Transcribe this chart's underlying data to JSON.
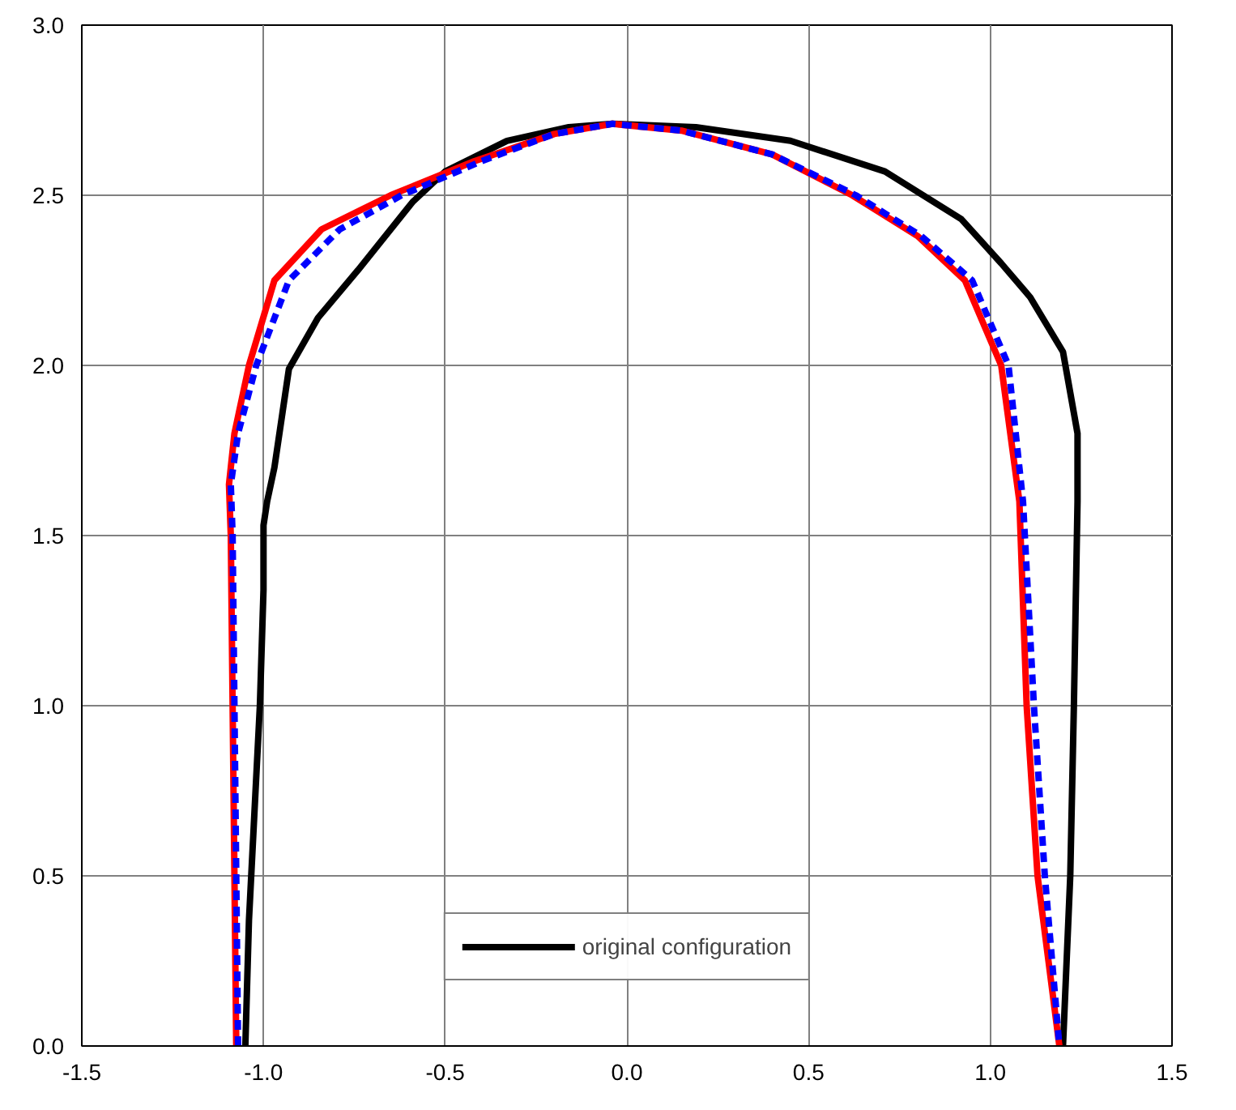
{
  "chart_data": {
    "type": "line",
    "xlim": [
      -1.5,
      1.5
    ],
    "ylim": [
      0,
      3.0
    ],
    "xticks": [
      {
        "value": -1.5,
        "label": "-1.5"
      },
      {
        "value": -1.0,
        "label": "-1.0"
      },
      {
        "value": -0.5,
        "label": "-0.5"
      },
      {
        "value": 0,
        "label": "0.0"
      },
      0.5,
      {
        "value": 1.0,
        "label": "1.0"
      },
      1.5
    ],
    "yticks": [
      {
        "value": 0,
        "label": "0.0"
      },
      0.5,
      {
        "value": 1.0,
        "label": "1.0"
      },
      1.5,
      {
        "value": 2.0,
        "label": "2.0"
      },
      2.5,
      {
        "value": 3.0,
        "label": "3.0"
      }
    ],
    "grid": true,
    "legend": "bottom",
    "marker": "none",
    "series": [
      {
        "name": "original configuration",
        "color": "#000000",
        "line_style": "solid",
        "x": [
          -1.05,
          -1.04,
          -1.01,
          -1.0,
          -1.0,
          -0.99,
          -0.97,
          -0.93,
          -0.85,
          -0.74,
          -0.59,
          -0.5,
          -0.33,
          -0.16,
          -0.04,
          0.19,
          0.45,
          0.71,
          0.92,
          1.03,
          1.11,
          1.2,
          1.24,
          1.24,
          1.23,
          1.22,
          1.2
        ],
        "values": [
          0,
          0.37,
          1.0,
          1.34,
          1.53,
          1.6,
          1.7,
          1.99,
          2.14,
          2.28,
          2.48,
          2.57,
          2.66,
          2.7,
          2.71,
          2.7,
          2.66,
          2.57,
          2.43,
          2.3,
          2.2,
          2.04,
          1.8,
          1.6,
          1.0,
          0.5,
          0
        ]
      },
      {
        "color": "#ff0000",
        "line_style": "solid",
        "x": [
          -1.075,
          -1.08,
          -1.085,
          -1.09,
          -1.095,
          -1.08,
          -1.04,
          -0.97,
          -0.84,
          -0.65,
          -0.42,
          -0.2,
          -0.04,
          0.15,
          0.4,
          0.62,
          0.8,
          0.93,
          1.03,
          1.08,
          1.1,
          1.13,
          1.16,
          1.19
        ],
        "values": [
          0,
          0.5,
          1.0,
          1.5,
          1.65,
          1.8,
          2.0,
          2.25,
          2.4,
          2.5,
          2.6,
          2.68,
          2.71,
          2.69,
          2.62,
          2.5,
          2.38,
          2.25,
          2.0,
          1.6,
          1.0,
          0.5,
          0.25,
          0
        ]
      },
      {
        "color": "#0000ff",
        "line_style": "dashed",
        "x": [
          -1.07,
          -1.075,
          -1.08,
          -1.085,
          -1.09,
          -1.07,
          -1.02,
          -0.93,
          -0.79,
          -0.62,
          -0.4,
          -0.2,
          -0.04,
          0.15,
          0.4,
          0.63,
          0.81,
          0.95,
          1.05,
          1.09,
          1.12,
          1.15,
          1.17,
          1.19
        ],
        "values": [
          0,
          0.5,
          1.0,
          1.5,
          1.65,
          1.8,
          2.0,
          2.25,
          2.4,
          2.5,
          2.6,
          2.68,
          2.71,
          2.69,
          2.62,
          2.5,
          2.38,
          2.25,
          2.0,
          1.6,
          1.0,
          0.5,
          0.25,
          0
        ]
      }
    ]
  }
}
